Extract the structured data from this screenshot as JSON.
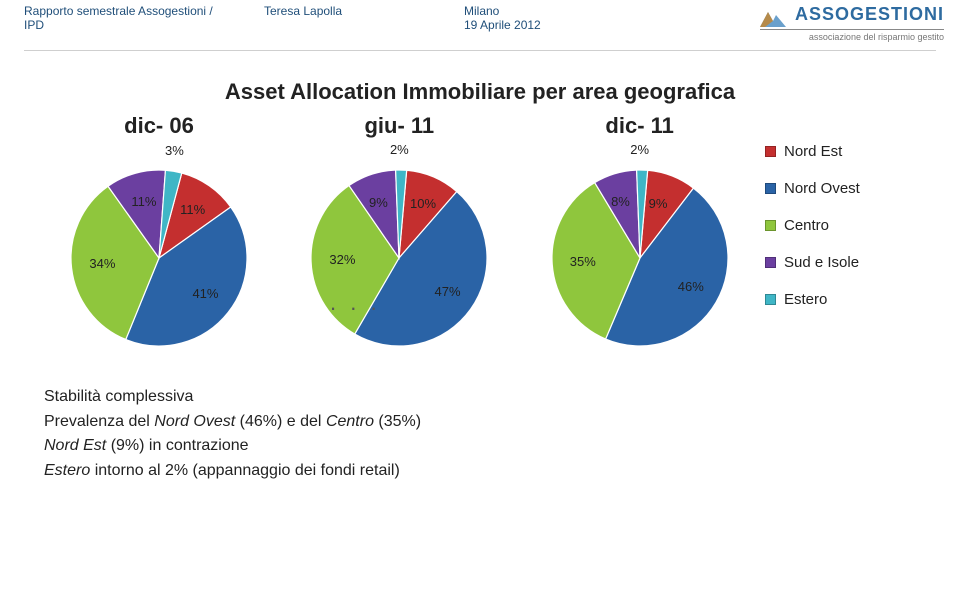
{
  "header": {
    "col1_line1": "Rapporto semestrale Assogestioni /",
    "col1_line2": "IPD",
    "col2": "Teresa Lapolla",
    "col3_line1": "Milano",
    "col3_line2": "19 Aprile 2012",
    "brand": "ASSOGESTIONI",
    "tagline": "associazione del risparmio gestito"
  },
  "title": "Asset Allocation Immobiliare per area geografica",
  "ellipsis": ". . .",
  "legend": {
    "items": [
      {
        "label": "Nord Est",
        "color": "#c42f2f"
      },
      {
        "label": "Nord Ovest",
        "color": "#2a63a6"
      },
      {
        "label": "Centro",
        "color": "#8fc63d"
      },
      {
        "label": "Sud e Isole",
        "color": "#6b3fa0"
      },
      {
        "label": "Estero",
        "color": "#3fb6c6"
      }
    ]
  },
  "categories_order": [
    "Nord Est",
    "Nord Ovest",
    "Centro",
    "Sud e Isole",
    "Estero"
  ],
  "colors": {
    "Nord Est": "#c42f2f",
    "Nord Ovest": "#2a63a6",
    "Centro": "#8fc63d",
    "Sud e Isole": "#6b3fa0",
    "Estero": "#3fb6c6"
  },
  "charts": [
    {
      "title": "dic- 06",
      "type": "pie",
      "rotation_deg": 15,
      "slices": [
        {
          "cat": "Nord Est",
          "value": 11,
          "label": "11%"
        },
        {
          "cat": "Nord Ovest",
          "value": 41,
          "label": "41%"
        },
        {
          "cat": "Centro",
          "value": 34,
          "label": "34%"
        },
        {
          "cat": "Sud e Isole",
          "value": 11,
          "label": "11%"
        },
        {
          "cat": "Estero",
          "value": 3,
          "label": "3%"
        }
      ]
    },
    {
      "title": "giu- 11",
      "type": "pie",
      "rotation_deg": 5,
      "slices": [
        {
          "cat": "Nord Est",
          "value": 10,
          "label": "10%"
        },
        {
          "cat": "Nord Ovest",
          "value": 47,
          "label": "47%"
        },
        {
          "cat": "Centro",
          "value": 32,
          "label": "32%"
        },
        {
          "cat": "Sud e Isole",
          "value": 9,
          "label": "9%"
        },
        {
          "cat": "Estero",
          "value": 2,
          "label": "2%"
        }
      ]
    },
    {
      "title": "dic- 11",
      "type": "pie",
      "rotation_deg": 5,
      "slices": [
        {
          "cat": "Nord Est",
          "value": 9,
          "label": "9%"
        },
        {
          "cat": "Nord Ovest",
          "value": 46,
          "label": "46%"
        },
        {
          "cat": "Centro",
          "value": 35,
          "label": "35%"
        },
        {
          "cat": "Sud e Isole",
          "value": 8,
          "label": "8%"
        },
        {
          "cat": "Estero",
          "value": 2,
          "label": "2%"
        }
      ]
    }
  ],
  "pie_style": {
    "radius": 88,
    "stroke": "#ffffff",
    "stroke_width": 1.2,
    "label_fontsize": 13,
    "label_radius_inner": 58,
    "label_radius_outer": 108,
    "small_slice_threshold_pct": 6
  },
  "notes": {
    "line1": "Stabilità complessiva",
    "line2_pre": "Prevalenza del ",
    "line2_em1": "Nord Ovest",
    "line2_mid": " (46%) e del ",
    "line2_em2": "Centro",
    "line2_post": " (35%)",
    "line3_em": "Nord Est",
    "line3_rest": " (9%) in contrazione",
    "line4_em": "Estero",
    "line4_rest": " intorno al 2% (appannaggio dei fondi retail)"
  }
}
